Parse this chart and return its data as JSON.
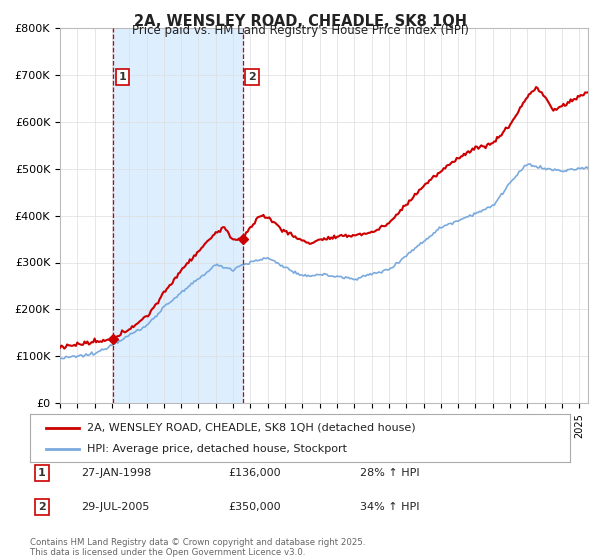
{
  "title": "2A, WENSLEY ROAD, CHEADLE, SK8 1QH",
  "subtitle": "Price paid vs. HM Land Registry's House Price Index (HPI)",
  "legend_line1": "2A, WENSLEY ROAD, CHEADLE, SK8 1QH (detached house)",
  "legend_line2": "HPI: Average price, detached house, Stockport",
  "annotation1_label": "1",
  "annotation1_date": "27-JAN-1998",
  "annotation1_price": "£136,000",
  "annotation1_hpi": "28% ↑ HPI",
  "annotation2_label": "2",
  "annotation2_date": "29-JUL-2005",
  "annotation2_price": "£350,000",
  "annotation2_hpi": "34% ↑ HPI",
  "footer": "Contains HM Land Registry data © Crown copyright and database right 2025.\nThis data is licensed under the Open Government Licence v3.0.",
  "red_color": "#cc0000",
  "blue_color": "#7aaadd",
  "shade_color": "#ddeeff",
  "background_color": "#ffffff",
  "grid_color": "#dddddd",
  "ylim": [
    0,
    800000
  ],
  "yticks": [
    0,
    100000,
    200000,
    300000,
    400000,
    500000,
    600000,
    700000,
    800000
  ],
  "ytick_labels": [
    "£0",
    "£100K",
    "£200K",
    "£300K",
    "£400K",
    "£500K",
    "£600K",
    "£700K",
    "£800K"
  ],
  "sale1_x": 1998.07,
  "sale1_y": 136000,
  "sale2_x": 2005.57,
  "sale2_y": 350000,
  "xmin": 1995,
  "xmax": 2025.5
}
